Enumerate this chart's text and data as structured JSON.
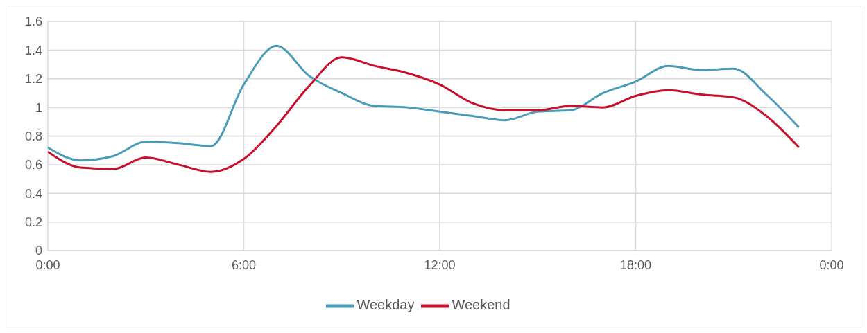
{
  "chart_data": {
    "type": "line",
    "x": [
      0,
      1,
      2,
      3,
      4,
      5,
      6,
      7,
      8,
      9,
      10,
      11,
      12,
      13,
      14,
      15,
      16,
      17,
      18,
      19,
      20,
      21,
      22,
      23
    ],
    "series": [
      {
        "name": "Weekday",
        "color": "#4a9bb8",
        "values": [
          0.72,
          0.63,
          0.66,
          0.76,
          0.75,
          0.73,
          1.16,
          1.43,
          1.22,
          1.1,
          1.01,
          1.0,
          0.97,
          0.94,
          0.91,
          0.97,
          0.98,
          1.1,
          1.18,
          1.29,
          1.26,
          1.27,
          1.09,
          0.86
        ]
      },
      {
        "name": "Weekend",
        "color": "#c8102e",
        "values": [
          0.69,
          0.58,
          0.57,
          0.65,
          0.6,
          0.55,
          0.64,
          0.87,
          1.15,
          1.35,
          1.29,
          1.24,
          1.16,
          1.03,
          0.98,
          0.98,
          1.01,
          1.0,
          1.08,
          1.12,
          1.09,
          1.07,
          0.94,
          0.72
        ]
      }
    ],
    "xlim": [
      0,
      24
    ],
    "xticks": [
      {
        "value": 0,
        "label": "0:00"
      },
      {
        "value": 6,
        "label": "6:00"
      },
      {
        "value": 12,
        "label": "12:00"
      },
      {
        "value": 18,
        "label": "18:00"
      },
      {
        "value": 24,
        "label": "0:00"
      }
    ],
    "ylim": [
      0,
      1.6
    ],
    "yticks": [
      0,
      0.2,
      0.4,
      0.6,
      0.8,
      1,
      1.2,
      1.4,
      1.6
    ],
    "grid": true,
    "legend": "bottom",
    "marker": "none",
    "line_style": "solid"
  }
}
